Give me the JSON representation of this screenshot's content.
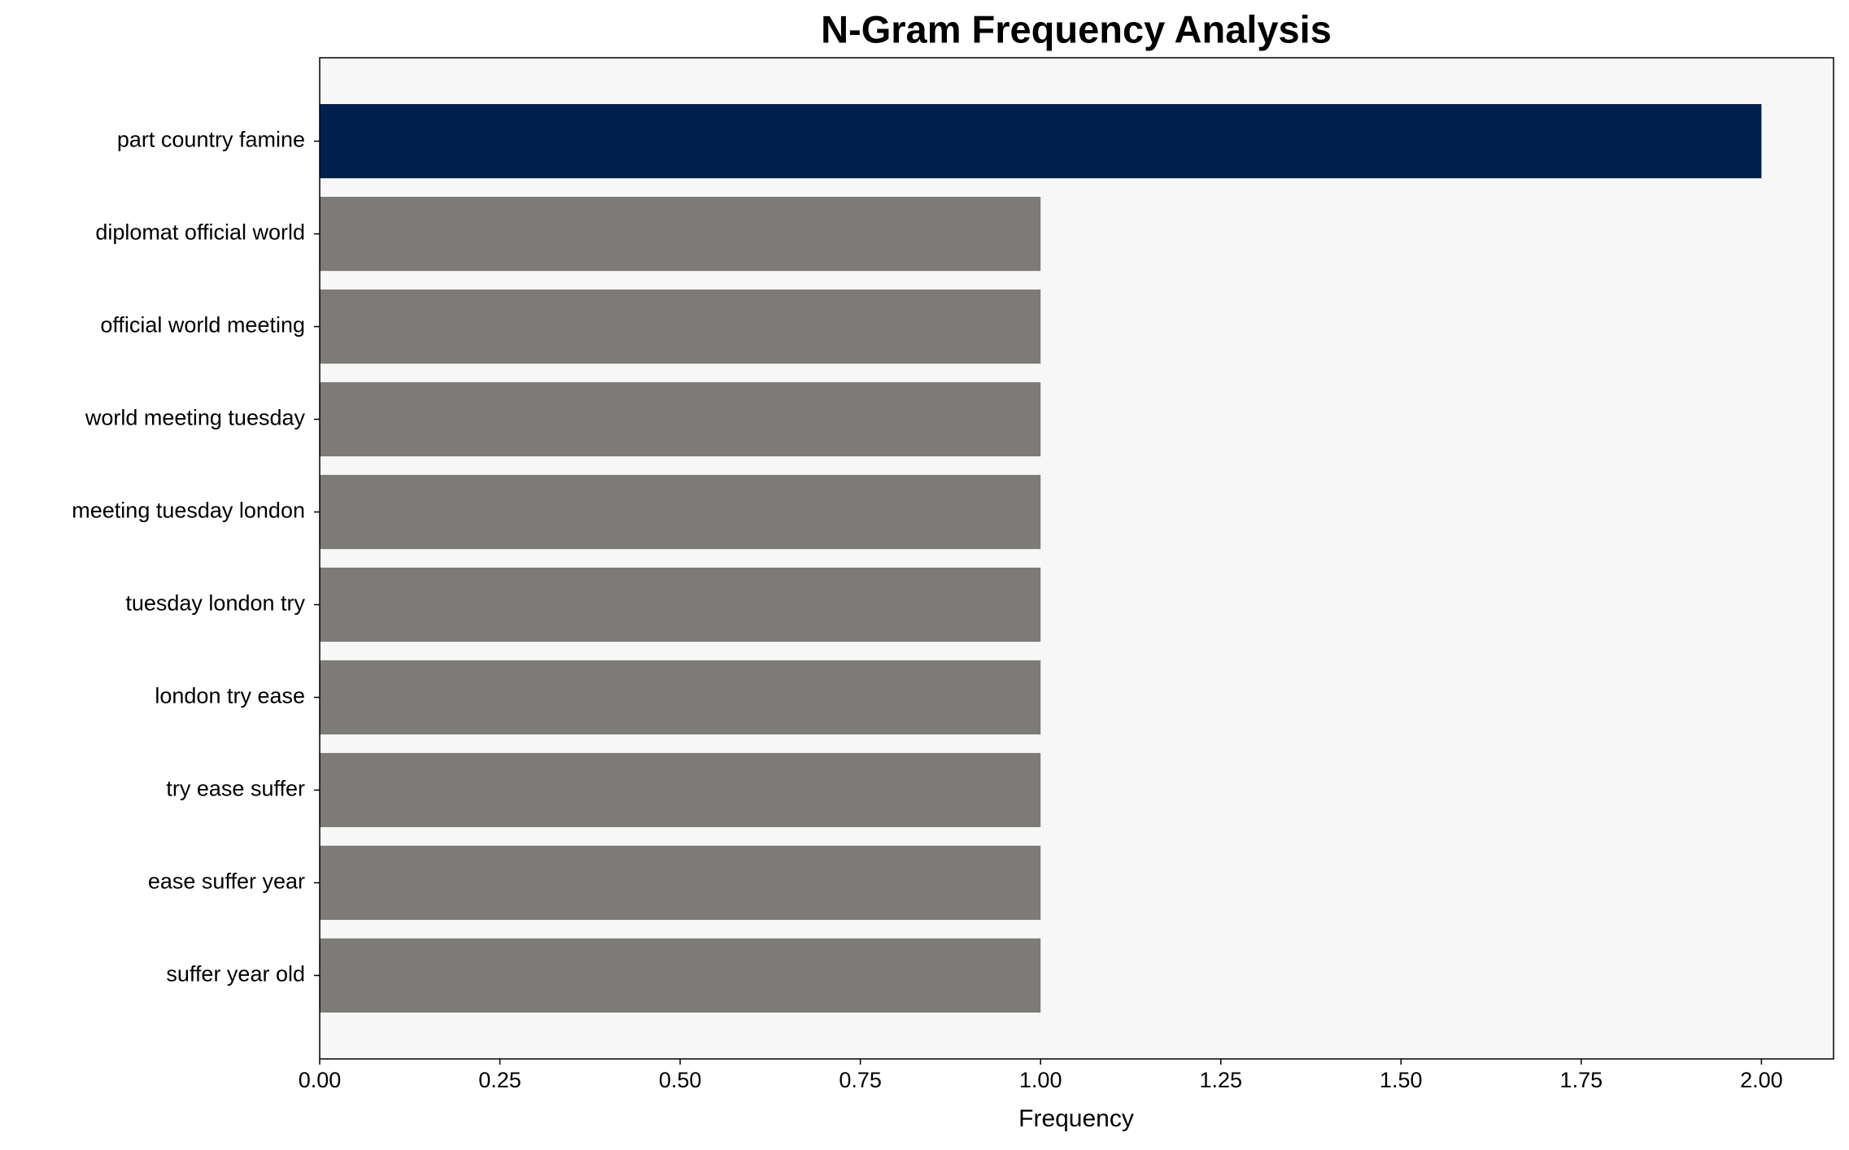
{
  "chart_data": {
    "type": "barh",
    "title": "N-Gram Frequency Analysis",
    "x_label": "Frequency",
    "categories": [
      "part country famine",
      "diplomat official world",
      "official world meeting",
      "world meeting tuesday",
      "meeting tuesday london",
      "tuesday london try",
      "london try ease",
      "try ease suffer",
      "ease suffer year",
      "suffer year old"
    ],
    "values": [
      2,
      1,
      1,
      1,
      1,
      1,
      1,
      1,
      1,
      1
    ],
    "colors": [
      "#00204e",
      "#7c7b78",
      "#7c7b78",
      "#7c7b78",
      "#7c7b78",
      "#7c7b78",
      "#7c7b78",
      "#7c7b78",
      "#7c7b78",
      "#7c7b78"
    ],
    "xlim": [
      0,
      2.1
    ],
    "xticks": [
      {
        "value": 0,
        "label": "0.00"
      },
      {
        "value": 0.25,
        "label": "0.25"
      },
      {
        "value": 0.5,
        "label": "0.50"
      },
      {
        "value": 0.75,
        "label": "0.75"
      },
      {
        "value": 1,
        "label": "1.00"
      },
      {
        "value": 1.25,
        "label": "1.25"
      },
      {
        "value": 1.5,
        "label": "1.50"
      },
      {
        "value": 1.75,
        "label": "1.75"
      },
      {
        "value": 2,
        "label": "2.00"
      }
    ],
    "grid": false
  }
}
